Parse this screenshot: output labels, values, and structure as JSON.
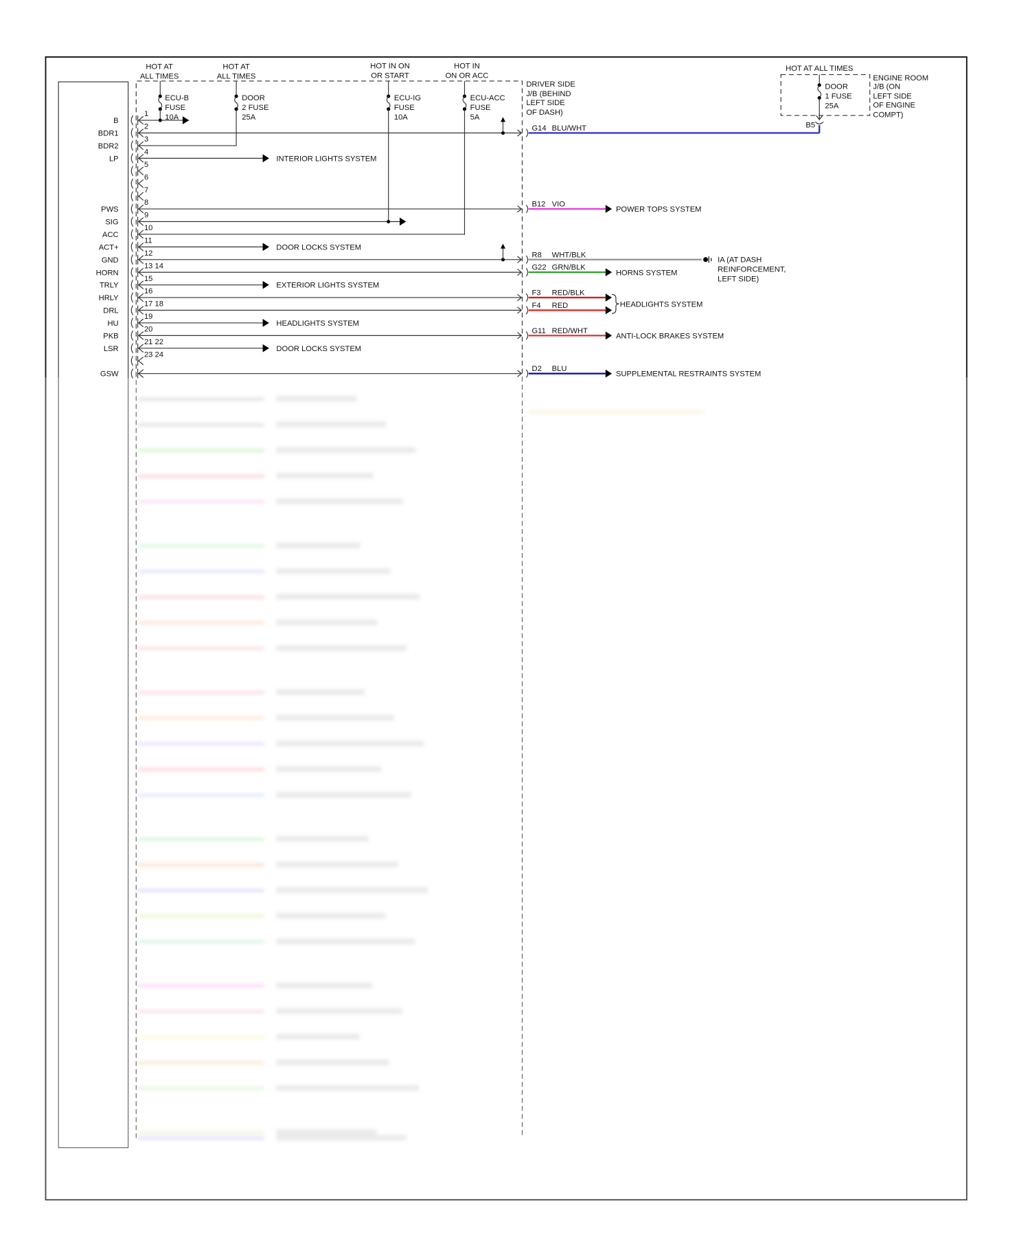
{
  "sources": [
    {
      "line1": "HOT AT",
      "line2": "ALL TIMES",
      "fuse": [
        "ECU-B",
        "FUSE",
        "10A"
      ]
    },
    {
      "line1": "HOT AT",
      "line2": "ALL TIMES",
      "fuse": [
        "DOOR",
        "2 FUSE",
        "25A"
      ]
    },
    {
      "line1": "HOT IN ON",
      "line2": "OR START",
      "fuse": [
        "ECU-IG",
        "FUSE",
        "10A"
      ]
    },
    {
      "line1": "HOT IN",
      "line2": "ON OR ACC",
      "fuse": [
        "ECU-ACC",
        "FUSE",
        "5A"
      ]
    }
  ],
  "driver_jb": [
    "DRIVER SIDE",
    "J/B (BEHIND",
    "LEFT SIDE",
    "OF DASH)"
  ],
  "engine_jb": {
    "hot_label": "HOT AT ALL TIMES",
    "fuse": [
      "DOOR",
      "1 FUSE",
      "25A"
    ],
    "label": [
      "ENGINE ROOM",
      "J/B (ON",
      "LEFT SIDE",
      "OF ENGINE",
      "COMPT)"
    ],
    "terminal": "B5"
  },
  "pins": [
    {
      "label": "B",
      "pin": "1",
      "kind": "fuse-b"
    },
    {
      "label": "BDR1",
      "pin": "2",
      "kind": "through"
    },
    {
      "label": "BDR2",
      "pin": "3",
      "kind": "door2"
    },
    {
      "label": "LP",
      "pin": "4",
      "kind": "system",
      "dest": "INTERIOR LIGHTS SYSTEM"
    },
    {
      "label": "",
      "pin": "5",
      "kind": "none"
    },
    {
      "label": "",
      "pin": "6",
      "kind": "none"
    },
    {
      "label": "",
      "pin": "7",
      "kind": "none"
    },
    {
      "label": "PWS",
      "pin": "8",
      "kind": "through"
    },
    {
      "label": "SIG",
      "pin": "9",
      "kind": "ig"
    },
    {
      "label": "ACC",
      "pin": "10",
      "kind": "acc"
    },
    {
      "label": "ACT+",
      "pin": "11",
      "kind": "system",
      "dest": "DOOR LOCKS SYSTEM"
    },
    {
      "label": "GND",
      "pin": "12",
      "kind": "through"
    },
    {
      "label": "HORN",
      "pin": "13 14",
      "kind": "through"
    },
    {
      "label": "TRLY",
      "pin": "15",
      "kind": "system",
      "dest": "EXTERIOR LIGHTS SYSTEM"
    },
    {
      "label": "HRLY",
      "pin": "16",
      "kind": "through"
    },
    {
      "label": "DRL",
      "pin": "17 18",
      "kind": "through"
    },
    {
      "label": "HU",
      "pin": "19",
      "kind": "system",
      "dest": "HEADLIGHTS SYSTEM"
    },
    {
      "label": "PKB",
      "pin": "20",
      "kind": "through"
    },
    {
      "label": "LSR",
      "pin": "21 22",
      "kind": "system",
      "dest": "DOOR LOCKS SYSTEM"
    },
    {
      "label": "",
      "pin": "23 24",
      "kind": "none"
    },
    {
      "label": "GSW",
      "pin": "",
      "kind": "through"
    }
  ],
  "wires": [
    {
      "row": 1,
      "code": "G14",
      "color_name": "BLU/WHT",
      "color": "#2a2ad0",
      "to": "engine-jb"
    },
    {
      "row": 7,
      "code": "B12",
      "color_name": "VIO",
      "color": "#e040e0",
      "dest": "POWER TOPS SYSTEM"
    },
    {
      "row": 11,
      "code": "R8",
      "color_name": "WHT/BLK",
      "color": "#999999",
      "to": "ground",
      "dest_lines": [
        "IA (AT DASH",
        "REINFORCEMENT,",
        "LEFT SIDE)"
      ]
    },
    {
      "row": 12,
      "code": "G22",
      "color_name": "GRN/BLK",
      "color": "#2a9a2a",
      "dest": "HORNS SYSTEM"
    },
    {
      "row": 14,
      "code": "F3",
      "color_name": "RED/BLK",
      "color": "#d02020",
      "to": "brace"
    },
    {
      "row": 15,
      "code": "F4",
      "color_name": "RED",
      "color": "#e02020",
      "to": "brace"
    },
    {
      "row": 17,
      "code": "G11",
      "color_name": "RED/WHT",
      "color": "#e03030",
      "dest": "ANTI-LOCK BRAKES SYSTEM"
    },
    {
      "row": 20,
      "code": "D2",
      "color_name": "BLU",
      "color": "#1010c0",
      "dest": "SUPPLEMENTAL RESTRAINTS SYSTEM"
    }
  ],
  "brace_dest": "HEADLIGHTS SYSTEM"
}
